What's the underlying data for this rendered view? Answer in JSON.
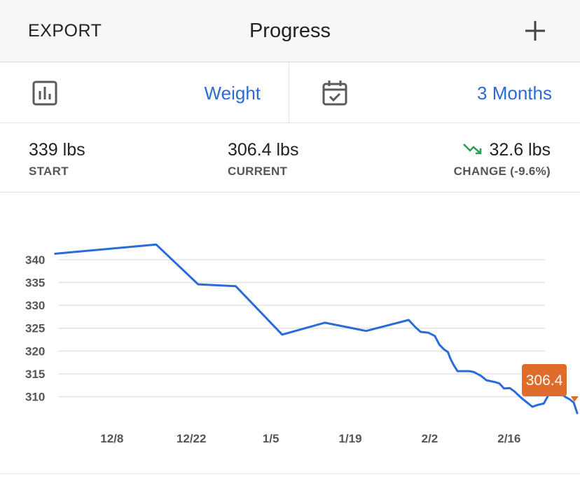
{
  "header": {
    "export_label": "EXPORT",
    "title": "Progress",
    "add_icon": "plus-icon"
  },
  "selectors": {
    "metric": {
      "icon": "bar-chart-icon",
      "label": "Weight"
    },
    "range": {
      "icon": "calendar-check-icon",
      "label": "3 Months"
    },
    "accent_color": "#2a6bd9"
  },
  "stats": {
    "start": {
      "value": "339 lbs",
      "label": "START"
    },
    "current": {
      "value": "306.4 lbs",
      "label": "CURRENT"
    },
    "change": {
      "value": "32.6 lbs",
      "label": "CHANGE (-9.6%)",
      "icon": "trend-down-icon",
      "icon_color": "#2e9e5b"
    }
  },
  "chart_data": {
    "type": "line",
    "y_ticks": [
      310,
      315,
      320,
      325,
      330,
      335,
      340
    ],
    "ylim": [
      305.5,
      343.5
    ],
    "x_ticks": [
      {
        "label": "12/8",
        "day": 8
      },
      {
        "label": "12/22",
        "day": 22
      },
      {
        "label": "1/5",
        "day": 36
      },
      {
        "label": "1/19",
        "day": 50
      },
      {
        "label": "2/2",
        "day": 64
      },
      {
        "label": "2/16",
        "day": 78
      }
    ],
    "xlim": [
      0,
      90
    ],
    "line_color": "#2a6bd9",
    "series": [
      {
        "points": [
          [
            -2,
            341.3
          ],
          [
            15.8,
            343.3
          ],
          [
            23.2,
            334.6
          ],
          [
            29.8,
            334.2
          ],
          [
            38.0,
            323.6
          ],
          [
            45.5,
            326.2
          ],
          [
            52.8,
            324.4
          ],
          [
            60.3,
            326.8
          ],
          [
            61.5,
            325.2
          ],
          [
            62.4,
            324.2
          ],
          [
            63.8,
            324.0
          ],
          [
            64.9,
            323.3
          ],
          [
            65.7,
            321.4
          ],
          [
            66.5,
            320.4
          ],
          [
            67.2,
            319.8
          ],
          [
            67.7,
            318.2
          ],
          [
            68.2,
            317.0
          ],
          [
            68.9,
            315.6
          ],
          [
            71.0,
            315.6
          ],
          [
            71.8,
            315.4
          ],
          [
            73.0,
            314.6
          ],
          [
            74.0,
            313.6
          ],
          [
            75.5,
            313.2
          ],
          [
            76.3,
            312.9
          ],
          [
            77.1,
            311.8
          ],
          [
            78.1,
            311.9
          ],
          [
            78.9,
            311.2
          ],
          [
            80.1,
            309.8
          ],
          [
            80.9,
            309.0
          ],
          [
            82.1,
            307.8
          ],
          [
            83.0,
            308.2
          ],
          [
            84.1,
            308.5
          ],
          [
            85.0,
            310.5
          ],
          [
            85.9,
            311.3
          ],
          [
            86.5,
            311.0
          ],
          [
            87.5,
            310.3
          ],
          [
            88.0,
            309.9
          ],
          [
            88.7,
            309.4
          ],
          [
            89.4,
            308.7
          ],
          [
            90.0,
            306.4
          ]
        ]
      }
    ],
    "callout": {
      "label": "306.4",
      "color": "#e06c2b"
    }
  }
}
